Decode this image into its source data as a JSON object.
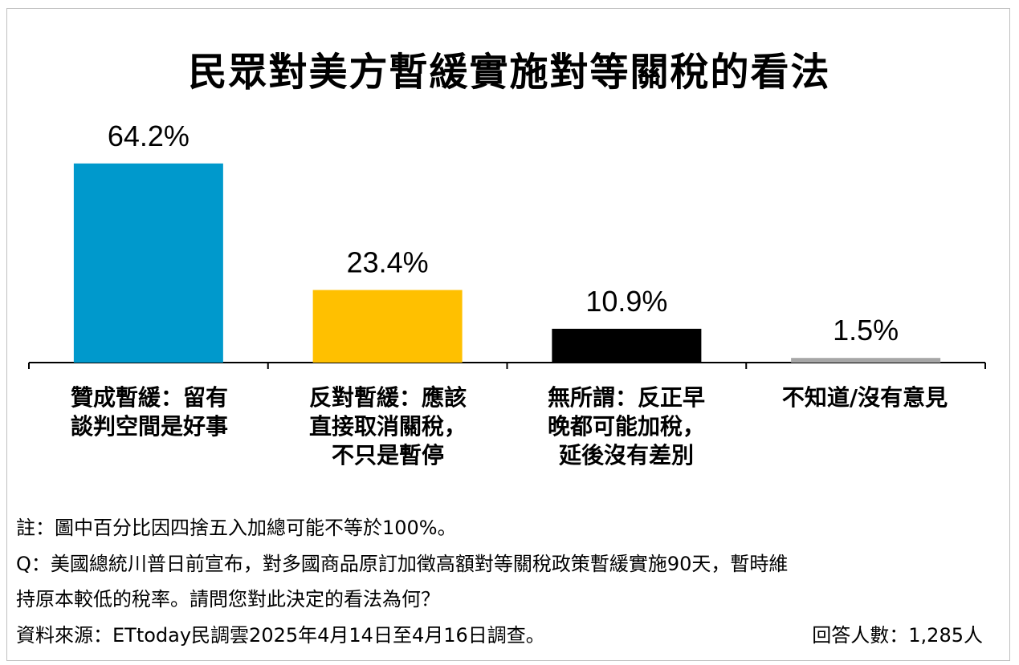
{
  "chart_data": {
    "type": "bar",
    "title": "民眾對美方暫緩實施對等關稅的看法",
    "categories": [
      "贊成暫緩：留有\n談判空間是好事",
      "反對暫緩：應該\n直接取消關稅，\n不只是暫停",
      "無所謂：反正早\n晚都可能加稅，\n延後沒有差別",
      "不知道/沒有意見"
    ],
    "values": [
      64.2,
      23.4,
      10.9,
      1.5
    ],
    "value_labels": [
      "64.2%",
      "23.4%",
      "10.9%",
      "1.5%"
    ],
    "colors": [
      "#0099cc",
      "#ffc000",
      "#000000",
      "#a6a6a6"
    ],
    "ylim": [
      0,
      75
    ]
  },
  "notes": {
    "rounding": "註：圖中百分比因四捨五入加總可能不等於100%。",
    "question_line1": "Q：美國總統川普日前宣布，對多國商品原訂加徵高額對等關稅政策暫緩實施90天，暫時維",
    "question_line2": "持原本較低的稅率。請問您對此決定的看法為何？",
    "source": "資料來源：ETtoday民調雲2025年4月14日至4月16日調查。",
    "respondents": "回答人數：1,285人"
  }
}
